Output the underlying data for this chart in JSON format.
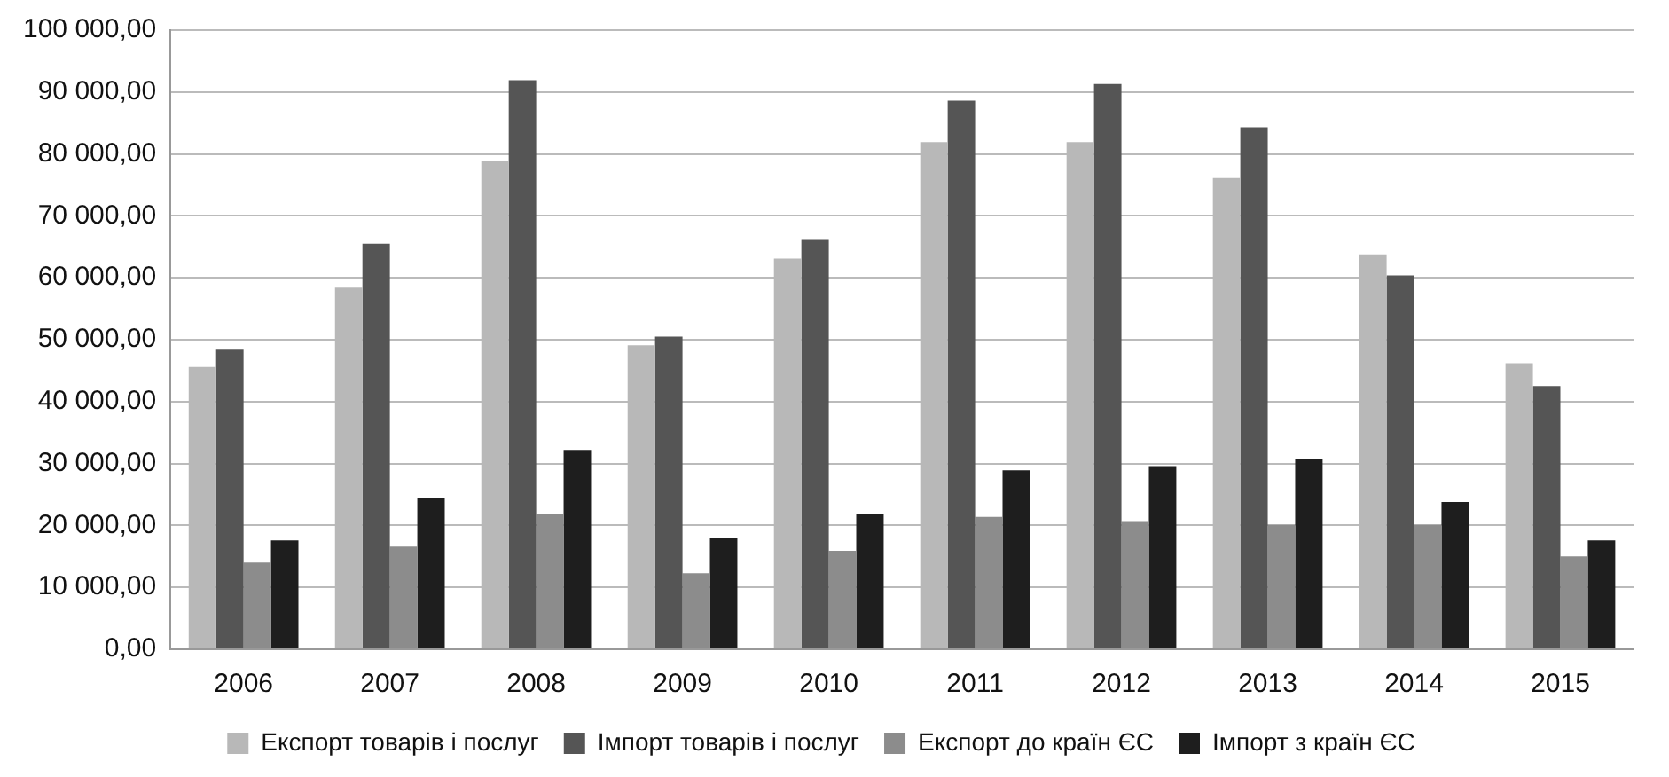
{
  "chart_data": {
    "type": "bar",
    "categories": [
      "2006",
      "2007",
      "2008",
      "2009",
      "2010",
      "2011",
      "2012",
      "2013",
      "2014",
      "2015"
    ],
    "series": [
      {
        "name": "Експорт товарів і послуг",
        "color": "#b8b8b8",
        "values": [
          45600,
          58400,
          78900,
          49100,
          63100,
          81900,
          81900,
          76100,
          63800,
          46200
        ]
      },
      {
        "name": "Імпорт товарів і послуг",
        "color": "#555555",
        "values": [
          48400,
          65500,
          91900,
          50500,
          66100,
          88600,
          91300,
          84300,
          60400,
          42500
        ]
      },
      {
        "name": "Експорт до країн ЄС",
        "color": "#8c8c8c",
        "values": [
          14000,
          16600,
          21900,
          12300,
          15900,
          21400,
          20700,
          20100,
          20100,
          15000
        ]
      },
      {
        "name": "Імпорт з країн ЄС",
        "color": "#1e1e1e",
        "values": [
          17600,
          24500,
          32200,
          17900,
          21900,
          28900,
          29600,
          30800,
          23800,
          17600
        ]
      }
    ],
    "ylim": [
      0,
      100000
    ],
    "yticks": [
      {
        "value": 0,
        "label": "0,00"
      },
      {
        "value": 10000,
        "label": "10 000,00"
      },
      {
        "value": 20000,
        "label": "20 000,00"
      },
      {
        "value": 30000,
        "label": "30 000,00"
      },
      {
        "value": 40000,
        "label": "40 000,00"
      },
      {
        "value": 50000,
        "label": "50 000,00"
      },
      {
        "value": 60000,
        "label": "60 000,00"
      },
      {
        "value": 70000,
        "label": "70 000,00"
      },
      {
        "value": 80000,
        "label": "80 000,00"
      },
      {
        "value": 90000,
        "label": "90 000,00"
      },
      {
        "value": 100000,
        "label": "100 000,00"
      }
    ],
    "grid": "y",
    "legend": "bottom"
  }
}
